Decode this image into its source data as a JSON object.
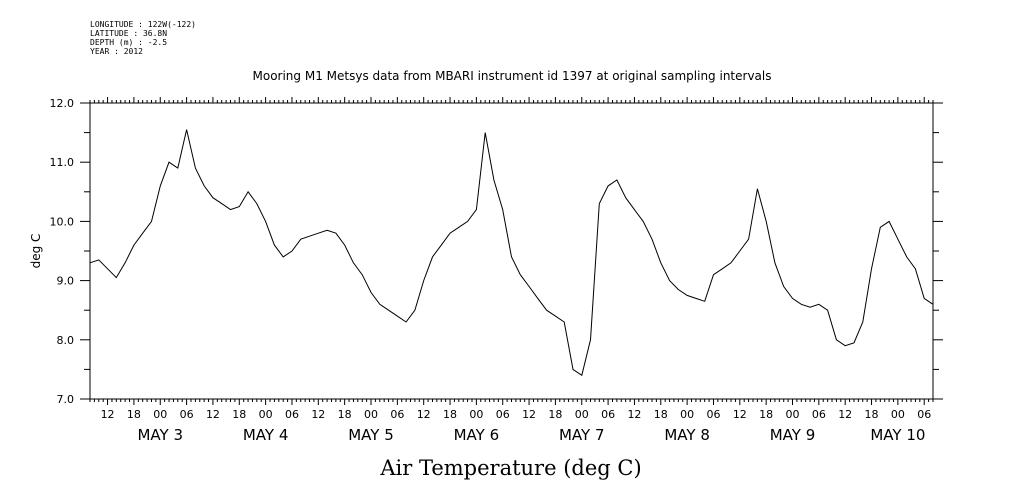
{
  "header": {
    "lines": [
      "LONGITUDE : 122W(-122)",
      "LATITUDE : 36.8N",
      "DEPTH (m) : -2.5",
      "YEAR : 2012"
    ]
  },
  "chart_data": {
    "type": "line",
    "title": "Mooring M1 Metsys data from MBARI instrument id 1397 at original sampling intervals",
    "xlabel": "Air Temperature (deg C)",
    "ylabel": "deg C",
    "ylim": [
      7.0,
      12.0
    ],
    "yticks": [
      "7.0",
      "8.0",
      "9.0",
      "10.0",
      "11.0",
      "12.0"
    ],
    "xlim": [
      "2012-05-02 08:00",
      "2012-05-10 08:00"
    ],
    "xtick_hours": [
      "12",
      "18",
      "00",
      "06",
      "12",
      "18",
      "00",
      "06",
      "12",
      "18",
      "00",
      "06",
      "12",
      "18",
      "00",
      "06",
      "12",
      "18",
      "00",
      "06",
      "12",
      "18",
      "00",
      "06",
      "12",
      "18",
      "00",
      "06",
      "12",
      "18",
      "00",
      "06"
    ],
    "day_labels": [
      "MAY  3",
      "MAY  4",
      "MAY  5",
      "MAY  6",
      "MAY  7",
      "MAY  8",
      "MAY  9",
      "MAY 10"
    ],
    "grid": false,
    "line_color": "#000000",
    "series": [
      {
        "x": [
          "2012-05-02 08:00",
          "2012-05-02 10:00",
          "2012-05-02 12:00",
          "2012-05-02 14:00",
          "2012-05-02 16:00",
          "2012-05-02 18:00",
          "2012-05-02 20:00",
          "2012-05-02 22:00",
          "2012-05-03 00:00",
          "2012-05-03 02:00",
          "2012-05-03 04:00",
          "2012-05-03 06:00",
          "2012-05-03 08:00",
          "2012-05-03 10:00",
          "2012-05-03 12:00",
          "2012-05-03 14:00",
          "2012-05-03 16:00",
          "2012-05-03 18:00",
          "2012-05-03 20:00",
          "2012-05-03 22:00",
          "2012-05-04 00:00",
          "2012-05-04 02:00",
          "2012-05-04 04:00",
          "2012-05-04 06:00",
          "2012-05-04 08:00",
          "2012-05-04 10:00",
          "2012-05-04 12:00",
          "2012-05-04 14:00",
          "2012-05-04 16:00",
          "2012-05-04 18:00",
          "2012-05-04 20:00",
          "2012-05-04 22:00",
          "2012-05-05 00:00",
          "2012-05-05 02:00",
          "2012-05-05 04:00",
          "2012-05-05 06:00",
          "2012-05-05 08:00",
          "2012-05-05 10:00",
          "2012-05-05 12:00",
          "2012-05-05 14:00",
          "2012-05-05 16:00",
          "2012-05-05 18:00",
          "2012-05-05 20:00",
          "2012-05-05 22:00",
          "2012-05-06 00:00",
          "2012-05-06 02:00",
          "2012-05-06 04:00",
          "2012-05-06 06:00",
          "2012-05-06 08:00",
          "2012-05-06 10:00",
          "2012-05-06 12:00",
          "2012-05-06 14:00",
          "2012-05-06 16:00",
          "2012-05-06 18:00",
          "2012-05-06 20:00",
          "2012-05-06 22:00",
          "2012-05-07 00:00",
          "2012-05-07 02:00",
          "2012-05-07 04:00",
          "2012-05-07 06:00",
          "2012-05-07 08:00",
          "2012-05-07 10:00",
          "2012-05-07 12:00",
          "2012-05-07 14:00",
          "2012-05-07 16:00",
          "2012-05-07 18:00",
          "2012-05-07 20:00",
          "2012-05-07 22:00",
          "2012-05-08 00:00",
          "2012-05-08 02:00",
          "2012-05-08 04:00",
          "2012-05-08 06:00",
          "2012-05-08 08:00",
          "2012-05-08 10:00",
          "2012-05-08 12:00",
          "2012-05-08 14:00",
          "2012-05-08 16:00",
          "2012-05-08 18:00",
          "2012-05-08 20:00",
          "2012-05-08 22:00",
          "2012-05-09 00:00",
          "2012-05-09 02:00",
          "2012-05-09 04:00",
          "2012-05-09 06:00",
          "2012-05-09 08:00",
          "2012-05-09 10:00",
          "2012-05-09 12:00",
          "2012-05-09 14:00",
          "2012-05-09 16:00",
          "2012-05-09 18:00",
          "2012-05-09 20:00",
          "2012-05-09 22:00",
          "2012-05-10 00:00",
          "2012-05-10 02:00",
          "2012-05-10 04:00",
          "2012-05-10 06:00",
          "2012-05-10 08:00"
        ],
        "values": [
          9.3,
          9.35,
          9.2,
          9.05,
          9.3,
          9.6,
          9.8,
          10.0,
          10.6,
          11.0,
          10.9,
          11.55,
          10.9,
          10.6,
          10.4,
          10.3,
          10.2,
          10.25,
          10.5,
          10.3,
          10.0,
          9.6,
          9.4,
          9.5,
          9.7,
          9.75,
          9.8,
          9.85,
          9.8,
          9.6,
          9.3,
          9.1,
          8.8,
          8.6,
          8.5,
          8.4,
          8.3,
          8.5,
          9.0,
          9.4,
          9.6,
          9.8,
          9.9,
          10.0,
          10.2,
          11.5,
          10.7,
          10.2,
          9.4,
          9.1,
          8.9,
          8.7,
          8.5,
          8.4,
          8.3,
          7.5,
          7.4,
          8.0,
          10.3,
          10.6,
          10.7,
          10.4,
          10.2,
          10.0,
          9.7,
          9.3,
          9.0,
          8.85,
          8.75,
          8.7,
          8.65,
          9.1,
          9.2,
          9.3,
          9.5,
          9.7,
          10.55,
          10.0,
          9.3,
          8.9,
          8.7,
          8.6,
          8.55,
          8.6,
          8.5,
          8.0,
          7.9,
          7.95,
          8.3,
          9.2,
          9.9,
          10.0,
          9.7,
          9.4,
          9.2,
          8.7,
          8.6
        ]
      }
    ]
  }
}
